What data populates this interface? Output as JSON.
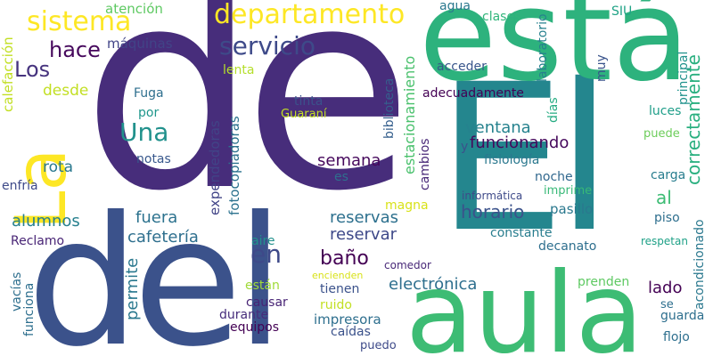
{
  "words": [
    {
      "text": "de",
      "color": "#472d7b"
    },
    {
      "text": "El",
      "color": "#24868e"
    },
    {
      "text": "está",
      "color": "#2db27d"
    },
    {
      "text": "aula",
      "color": "#3dbc74"
    },
    {
      "text": "del",
      "color": "#3b528b"
    },
    {
      "text": "La",
      "color": "#fde725"
    },
    {
      "text": "departamento",
      "color": "#fde725"
    },
    {
      "text": "sistema",
      "color": "#fde725"
    },
    {
      "text": "servicio",
      "color": "#3e4a89"
    },
    {
      "text": "hace",
      "color": "#46085c"
    },
    {
      "text": "Los",
      "color": "#46337e"
    },
    {
      "text": "desde",
      "color": "#c2df23"
    },
    {
      "text": "Una",
      "color": "#21918c"
    },
    {
      "text": "máquinas",
      "color": "#414487"
    },
    {
      "text": "atención",
      "color": "#5ec962"
    },
    {
      "text": "agua",
      "color": "#2a788e"
    },
    {
      "text": "clases",
      "color": "#31b57b"
    },
    {
      "text": "laboratorio",
      "color": "#27808e"
    },
    {
      "text": "SIU",
      "color": "#20a386"
    },
    {
      "text": "principal",
      "color": "#20928c"
    },
    {
      "text": "correctamente",
      "color": "#29af7f"
    },
    {
      "text": "calefacción",
      "color": "#c2df23"
    },
    {
      "text": "lenta",
      "color": "#b5de2b"
    },
    {
      "text": "biblioteca",
      "color": "#355f8d"
    },
    {
      "text": "estacionamiento",
      "color": "#4ac16d"
    },
    {
      "text": "acceder",
      "color": "#39568c"
    },
    {
      "text": "muy",
      "color": "#3a548c"
    },
    {
      "text": "adecuadamente",
      "color": "#440154"
    },
    {
      "text": "días",
      "color": "#25ab82"
    },
    {
      "text": "luces",
      "color": "#1f9e89"
    },
    {
      "text": "puede",
      "color": "#6ccd5a"
    },
    {
      "text": "Fuga",
      "color": "#2e6f8e"
    },
    {
      "text": "por",
      "color": "#1f968b"
    },
    {
      "text": "tinta",
      "color": "#3b528b"
    },
    {
      "text": "Guaraní",
      "color": "#c2df23"
    },
    {
      "text": "ventana",
      "color": "#26828e"
    },
    {
      "text": "funcionando",
      "color": "#46085c"
    },
    {
      "text": "y",
      "color": "#3b528b"
    },
    {
      "text": "fisiología",
      "color": "#2a788e"
    },
    {
      "text": "rota",
      "color": "#2a788e"
    },
    {
      "text": "expendedoras",
      "color": "#414487"
    },
    {
      "text": "fotocopiadoras",
      "color": "#2c728e"
    },
    {
      "text": "notas",
      "color": "#38588c"
    },
    {
      "text": "semana",
      "color": "#46085c"
    },
    {
      "text": "cambios",
      "color": "#482878"
    },
    {
      "text": "noche",
      "color": "#31688e"
    },
    {
      "text": "carga",
      "color": "#287d8e"
    },
    {
      "text": "enfría",
      "color": "#3e4a89"
    },
    {
      "text": "es",
      "color": "#2e6f8e"
    },
    {
      "text": "al",
      "color": "#3dbc74"
    },
    {
      "text": "informática",
      "color": "#3e4a89"
    },
    {
      "text": "imprime",
      "color": "#38b977"
    },
    {
      "text": "alumnos",
      "color": "#27808e"
    },
    {
      "text": "fuera",
      "color": "#2c728e"
    },
    {
      "text": "reservas",
      "color": "#2d708e"
    },
    {
      "text": "horario",
      "color": "#3b528b"
    },
    {
      "text": "magna",
      "color": "#d8e219"
    },
    {
      "text": "pasillo",
      "color": "#2a788e"
    },
    {
      "text": "piso",
      "color": "#2e6f8e"
    },
    {
      "text": "cafetería",
      "color": "#2e6f8e"
    },
    {
      "text": "reservar",
      "color": "#3e4989"
    },
    {
      "text": "constante",
      "color": "#287d8e"
    },
    {
      "text": "acondicionado",
      "color": "#2a788e"
    },
    {
      "text": "respetan",
      "color": "#1fa187"
    },
    {
      "text": "decanato",
      "color": "#2e6f8e"
    },
    {
      "text": "Reclamo",
      "color": "#482475"
    },
    {
      "text": "aire",
      "color": "#21918c"
    },
    {
      "text": "en",
      "color": "#3e4989"
    },
    {
      "text": "baño",
      "color": "#440154"
    },
    {
      "text": "comedor",
      "color": "#482878"
    },
    {
      "text": "encienden",
      "color": "#d8e219"
    },
    {
      "text": "electrónica",
      "color": "#2e6f8e"
    },
    {
      "text": "prenden",
      "color": "#5ec962"
    },
    {
      "text": "lado",
      "color": "#440154"
    },
    {
      "text": "vacías",
      "color": "#2e6f8e"
    },
    {
      "text": "permite",
      "color": "#2a788e"
    },
    {
      "text": "están",
      "color": "#a0da39"
    },
    {
      "text": "tienen",
      "color": "#3b528b"
    },
    {
      "text": "ruido",
      "color": "#c2df23"
    },
    {
      "text": "se",
      "color": "#2e6f8e"
    },
    {
      "text": "funciona",
      "color": "#2e6f8e"
    },
    {
      "text": "causar",
      "color": "#482475"
    },
    {
      "text": "durante",
      "color": "#472d7b"
    },
    {
      "text": "impresora",
      "color": "#2e6f8e"
    },
    {
      "text": "guarda",
      "color": "#2e6f8e"
    },
    {
      "text": "equipos",
      "color": "#440154"
    },
    {
      "text": "caídas",
      "color": "#3b528b"
    },
    {
      "text": "puedo",
      "color": "#3e4a89"
    },
    {
      "text": "flojo",
      "color": "#2e6f8e"
    }
  ]
}
